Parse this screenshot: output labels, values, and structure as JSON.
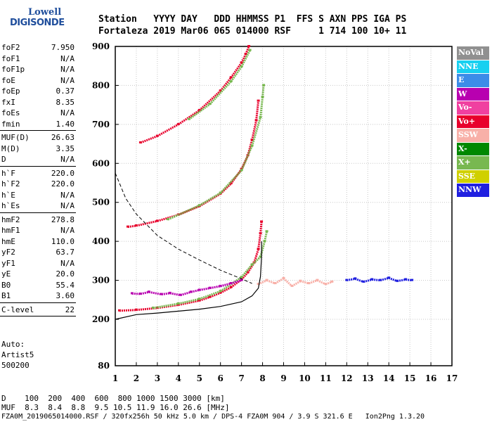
{
  "logo": {
    "line1": "Lowell",
    "line2": "DIGISONDE"
  },
  "header": {
    "line1": "Station   YYYY DAY   DDD HHMMSS P1  FFS S AXN PPS IGA PS",
    "line2": "Fortaleza 2019 Mar06 065 014000 RSF     1 714 100 10+ 11"
  },
  "params": {
    "g1": [
      {
        "k": "foF2",
        "v": "7.950"
      },
      {
        "k": "foF1",
        "v": "N/A"
      },
      {
        "k": "foF1p",
        "v": "N/A"
      },
      {
        "k": "foE",
        "v": "N/A"
      },
      {
        "k": "foEp",
        "v": "0.37"
      },
      {
        "k": "fxI",
        "v": "8.35"
      },
      {
        "k": "foEs",
        "v": "N/A"
      },
      {
        "k": "fmin",
        "v": "1.40"
      }
    ],
    "g2": [
      {
        "k": "MUF(D)",
        "v": "26.63"
      },
      {
        "k": "M(D)",
        "v": "3.35"
      },
      {
        "k": "D",
        "v": "N/A"
      }
    ],
    "g3": [
      {
        "k": "h`F",
        "v": "220.0"
      },
      {
        "k": "h`F2",
        "v": "220.0"
      },
      {
        "k": "h`E",
        "v": "N/A"
      },
      {
        "k": "h`Es",
        "v": "N/A"
      }
    ],
    "g4": [
      {
        "k": "hmF2",
        "v": "278.8"
      },
      {
        "k": "hmF1",
        "v": "N/A"
      },
      {
        "k": "hmE",
        "v": "110.0"
      },
      {
        "k": "yF2",
        "v": "63.7"
      },
      {
        "k": "yF1",
        "v": "N/A"
      },
      {
        "k": "yE",
        "v": "20.0"
      },
      {
        "k": "B0",
        "v": "55.4"
      },
      {
        "k": "B1",
        "v": "3.60"
      }
    ],
    "g5": [
      {
        "k": "C-level",
        "v": "22"
      }
    ]
  },
  "auto": {
    "line1": "Auto:",
    "line2": "Artist5",
    "line3": "500200"
  },
  "legend": [
    {
      "label": "NoVal",
      "color": "#909090"
    },
    {
      "label": "NNE",
      "color": "#18d0f0"
    },
    {
      "label": "E",
      "color": "#3c8ce8"
    },
    {
      "label": "W",
      "color": "#b800b0"
    },
    {
      "label": "Vo-",
      "color": "#f040a0"
    },
    {
      "label": "Vo+",
      "color": "#e8002c"
    },
    {
      "label": "SSW",
      "color": "#f8b0a8"
    },
    {
      "label": "X-",
      "color": "#008800"
    },
    {
      "label": "X+",
      "color": "#78b850"
    },
    {
      "label": "SSE",
      "color": "#d0d000"
    },
    {
      "label": "NNW",
      "color": "#2020e0"
    }
  ],
  "footer": {
    "d_line": "D    100  200  400  600  800 1000 1500 3000 [km]",
    "muf_line": "MUF  8.3  8.4  8.8  9.5 10.5 11.9 16.0 26.6 [MHz]",
    "file_line": "FZA0M_2019065014000.RSF / 320fx256h 50 kHz 5.0 km / DPS-4 FZA0M 904 / 3.9 S 321.6 E   Ion2Png 1.3.20"
  },
  "chart_data": {
    "type": "scatter",
    "x_ticks": [
      1,
      2,
      3,
      4,
      5,
      6,
      7,
      8,
      9,
      10,
      11,
      12,
      13,
      14,
      15,
      16,
      17
    ],
    "y_ticks": [
      80,
      200,
      300,
      400,
      500,
      600,
      700,
      800,
      900
    ],
    "xlim": [
      1,
      17
    ],
    "ylim": [
      80,
      900
    ],
    "grid": true,
    "series": [
      {
        "color": "#e8002c",
        "points": [
          [
            1.2,
            222
          ],
          [
            2,
            224
          ],
          [
            3,
            229
          ],
          [
            4,
            237
          ],
          [
            5,
            248
          ],
          [
            5.5,
            257
          ],
          [
            6,
            268
          ],
          [
            6.5,
            282
          ],
          [
            7,
            302
          ],
          [
            7.3,
            320
          ],
          [
            7.6,
            345
          ],
          [
            7.8,
            380
          ],
          [
            7.9,
            420
          ],
          [
            7.95,
            450
          ]
        ]
      },
      {
        "color": "#e8002c",
        "points": [
          [
            1.6,
            437
          ],
          [
            2,
            440
          ],
          [
            3,
            452
          ],
          [
            4,
            468
          ],
          [
            5,
            490
          ],
          [
            6,
            522
          ],
          [
            6.5,
            548
          ],
          [
            7,
            585
          ],
          [
            7.3,
            620
          ],
          [
            7.5,
            660
          ],
          [
            7.7,
            710
          ],
          [
            7.8,
            760
          ]
        ]
      },
      {
        "color": "#e8002c",
        "points": [
          [
            2.2,
            653
          ],
          [
            3,
            670
          ],
          [
            4,
            700
          ],
          [
            5,
            736
          ],
          [
            6,
            786
          ],
          [
            6.5,
            820
          ],
          [
            7,
            858
          ],
          [
            7.2,
            880
          ],
          [
            7.35,
            900
          ]
        ]
      },
      {
        "color": "#78b850",
        "points": [
          [
            2.8,
            229
          ],
          [
            4,
            240
          ],
          [
            5,
            252
          ],
          [
            6,
            272
          ],
          [
            7,
            308
          ],
          [
            7.5,
            340
          ],
          [
            7.9,
            360
          ],
          [
            8.1,
            400
          ],
          [
            8.2,
            425
          ]
        ]
      },
      {
        "color": "#78b850",
        "points": [
          [
            3.5,
            456
          ],
          [
            5,
            492
          ],
          [
            6,
            524
          ],
          [
            7,
            582
          ],
          [
            7.5,
            645
          ],
          [
            7.9,
            718
          ],
          [
            8,
            770
          ],
          [
            8.05,
            800
          ]
        ]
      },
      {
        "color": "#78b850",
        "points": [
          [
            4.5,
            713
          ],
          [
            5.5,
            752
          ],
          [
            6.5,
            810
          ],
          [
            7,
            848
          ],
          [
            7.4,
            890
          ]
        ]
      },
      {
        "color": "#b800b0",
        "points": [
          [
            1.8,
            266
          ],
          [
            2.2,
            265
          ],
          [
            2.6,
            270
          ],
          [
            3.2,
            264
          ],
          [
            3.6,
            267
          ],
          [
            4.1,
            262
          ],
          [
            4.6,
            270
          ],
          [
            5,
            275
          ],
          [
            5.5,
            280
          ],
          [
            6,
            285
          ],
          [
            6.5,
            292
          ],
          [
            7,
            300
          ]
        ]
      },
      {
        "color": "#f8b0a8",
        "points": [
          [
            7.8,
            290
          ],
          [
            8.2,
            300
          ],
          [
            8.6,
            292
          ],
          [
            9,
            305
          ],
          [
            9.4,
            285
          ],
          [
            9.8,
            298
          ],
          [
            10.2,
            292
          ],
          [
            10.6,
            300
          ],
          [
            11,
            290
          ],
          [
            11.3,
            296
          ]
        ]
      },
      {
        "color": "#2020e0",
        "points": [
          [
            12,
            300
          ],
          [
            12.4,
            304
          ],
          [
            12.8,
            296
          ],
          [
            13.2,
            302
          ],
          [
            13.6,
            300
          ],
          [
            14,
            306
          ],
          [
            14.4,
            298
          ],
          [
            14.8,
            302
          ],
          [
            15.1,
            300
          ]
        ]
      }
    ],
    "profile_solid": [
      [
        1,
        200
      ],
      [
        2,
        212
      ],
      [
        3,
        216
      ],
      [
        4,
        221
      ],
      [
        5,
        226
      ],
      [
        6,
        233
      ],
      [
        7,
        245
      ],
      [
        7.5,
        260
      ],
      [
        7.8,
        280
      ],
      [
        7.9,
        310
      ],
      [
        7.95,
        360
      ],
      [
        7.95,
        400
      ]
    ],
    "profile_dashed": [
      [
        1,
        575
      ],
      [
        1.5,
        510
      ],
      [
        2,
        470
      ],
      [
        3,
        415
      ],
      [
        4,
        380
      ],
      [
        5,
        352
      ],
      [
        6,
        326
      ],
      [
        7,
        304
      ],
      [
        7.5,
        292
      ]
    ]
  }
}
